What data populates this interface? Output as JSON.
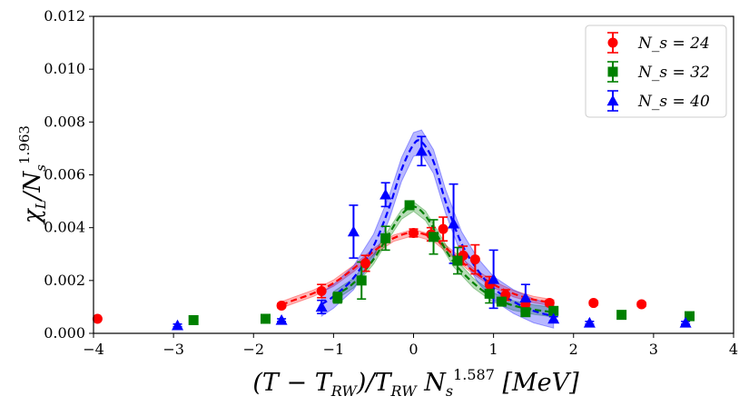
{
  "chart_data": {
    "type": "scatter",
    "xlabel": "(T − T_RW)/T_RW N_s^1.587 [MeV]",
    "ylabel": "χ_L/N_s^1.963",
    "xlim": [
      -4,
      4
    ],
    "ylim": [
      0,
      0.012
    ],
    "x_ticks": [
      -4,
      -3,
      -2,
      -1,
      0,
      1,
      2,
      3,
      4
    ],
    "y_ticks": [
      0,
      0.002,
      0.004,
      0.006,
      0.008,
      0.01,
      0.012
    ],
    "x_tick_labels": [
      "−4",
      "−3",
      "−2",
      "−1",
      "0",
      "1",
      "2",
      "3",
      "4"
    ],
    "y_tick_labels": [
      "0.000",
      "0.002",
      "0.004",
      "0.006",
      "0.008",
      "0.010",
      "0.012"
    ],
    "legend_position": "top-right",
    "series": [
      {
        "name": "N_s = 24",
        "legend_label": "N_s = 24",
        "color": "#ff0000",
        "marker": "circle",
        "points": [
          {
            "x": -3.95,
            "y": 0.00055,
            "err": 5e-05
          },
          {
            "x": -1.65,
            "y": 0.00105,
            "err": 8e-05
          },
          {
            "x": -1.15,
            "y": 0.0016,
            "err": 0.00025
          },
          {
            "x": -0.6,
            "y": 0.00265,
            "err": 0.0003
          },
          {
            "x": 0.0,
            "y": 0.0038,
            "err": 0.00015
          },
          {
            "x": 0.22,
            "y": 0.00375,
            "err": 0.00025
          },
          {
            "x": 0.37,
            "y": 0.00395,
            "err": 0.00045
          },
          {
            "x": 0.62,
            "y": 0.00295,
            "err": 0.00035
          },
          {
            "x": 0.77,
            "y": 0.0028,
            "err": 0.00055
          },
          {
            "x": 0.95,
            "y": 0.00185,
            "err": 0.0003
          },
          {
            "x": 1.15,
            "y": 0.00145,
            "err": 0.0002
          },
          {
            "x": 1.4,
            "y": 0.0011,
            "err": 0.0002
          },
          {
            "x": 1.7,
            "y": 0.00115,
            "err": 0.0001
          },
          {
            "x": 2.25,
            "y": 0.00115,
            "err": 8e-05
          },
          {
            "x": 2.85,
            "y": 0.0011,
            "err": 8e-05
          }
        ],
        "fit_x": [
          -1.65,
          -1.5,
          -1.25,
          -1.0,
          -0.75,
          -0.5,
          -0.25,
          0.0,
          0.25,
          0.5,
          0.75,
          1.0,
          1.25,
          1.5,
          1.75
        ],
        "fit_y": [
          0.00108,
          0.00125,
          0.00152,
          0.0019,
          0.00245,
          0.0031,
          0.0036,
          0.00382,
          0.0036,
          0.00298,
          0.00235,
          0.00185,
          0.0015,
          0.00128,
          0.00115
        ],
        "fit_band": 0.00012
      },
      {
        "name": "N_s = 32",
        "legend_label": "N_s = 32",
        "color": "#008000",
        "marker": "square",
        "points": [
          {
            "x": -2.75,
            "y": 0.0005,
            "err": 5e-05
          },
          {
            "x": -1.85,
            "y": 0.00055,
            "err": 5e-05
          },
          {
            "x": -0.95,
            "y": 0.00135,
            "err": 0.0002
          },
          {
            "x": -0.65,
            "y": 0.002,
            "err": 0.0007
          },
          {
            "x": -0.35,
            "y": 0.0036,
            "err": 0.00045
          },
          {
            "x": -0.05,
            "y": 0.00485,
            "err": 0.00012
          },
          {
            "x": 0.25,
            "y": 0.00365,
            "err": 0.00065
          },
          {
            "x": 0.55,
            "y": 0.00275,
            "err": 0.0005
          },
          {
            "x": 0.95,
            "y": 0.0015,
            "err": 0.00035
          },
          {
            "x": 1.1,
            "y": 0.0012,
            "err": 0.00015
          },
          {
            "x": 1.4,
            "y": 0.0008,
            "err": 0.0001
          },
          {
            "x": 1.75,
            "y": 0.00085,
            "err": 0.0001
          },
          {
            "x": 2.6,
            "y": 0.0007,
            "err": 5e-05
          },
          {
            "x": 3.45,
            "y": 0.00065,
            "err": 5e-05
          }
        ],
        "fit_x": [
          -1.0,
          -0.75,
          -0.5,
          -0.3,
          -0.15,
          0.0,
          0.15,
          0.3,
          0.5,
          0.75,
          1.0,
          1.25,
          1.5,
          1.75
        ],
        "fit_y": [
          0.0014,
          0.0019,
          0.0028,
          0.0038,
          0.0045,
          0.0048,
          0.00445,
          0.0037,
          0.0027,
          0.0019,
          0.00135,
          0.00105,
          0.0009,
          0.0008
        ],
        "fit_band": 0.00018
      },
      {
        "name": "N_s = 40",
        "legend_label": "N_s = 40",
        "color": "#0000ff",
        "marker": "triangle",
        "points": [
          {
            "x": -2.95,
            "y": 0.0003,
            "err": 5e-05
          },
          {
            "x": -1.65,
            "y": 0.0005,
            "err": 5e-05
          },
          {
            "x": -1.15,
            "y": 0.001,
            "err": 0.00025
          },
          {
            "x": -0.75,
            "y": 0.00385,
            "err": 0.001
          },
          {
            "x": -0.35,
            "y": 0.00525,
            "err": 0.00045
          },
          {
            "x": 0.1,
            "y": 0.0069,
            "err": 0.00055
          },
          {
            "x": 0.5,
            "y": 0.00415,
            "err": 0.0015
          },
          {
            "x": 1.0,
            "y": 0.00205,
            "err": 0.0011
          },
          {
            "x": 1.4,
            "y": 0.00135,
            "err": 0.0005
          },
          {
            "x": 1.75,
            "y": 0.00055,
            "err": 8e-05
          },
          {
            "x": 2.2,
            "y": 0.0004,
            "err": 5e-05
          },
          {
            "x": 3.4,
            "y": 0.0004,
            "err": 5e-05
          }
        ],
        "fit_x": [
          -1.15,
          -1.0,
          -0.75,
          -0.5,
          -0.3,
          -0.15,
          0.0,
          0.1,
          0.25,
          0.4,
          0.6,
          0.8,
          1.0,
          1.25,
          1.5,
          1.75
        ],
        "fit_y": [
          0.0011,
          0.0014,
          0.0021,
          0.0033,
          0.0048,
          0.0062,
          0.00715,
          0.00725,
          0.0065,
          0.005,
          0.0034,
          0.0024,
          0.0017,
          0.0012,
          0.00085,
          0.00065
        ],
        "fit_band": 0.00045
      }
    ]
  }
}
